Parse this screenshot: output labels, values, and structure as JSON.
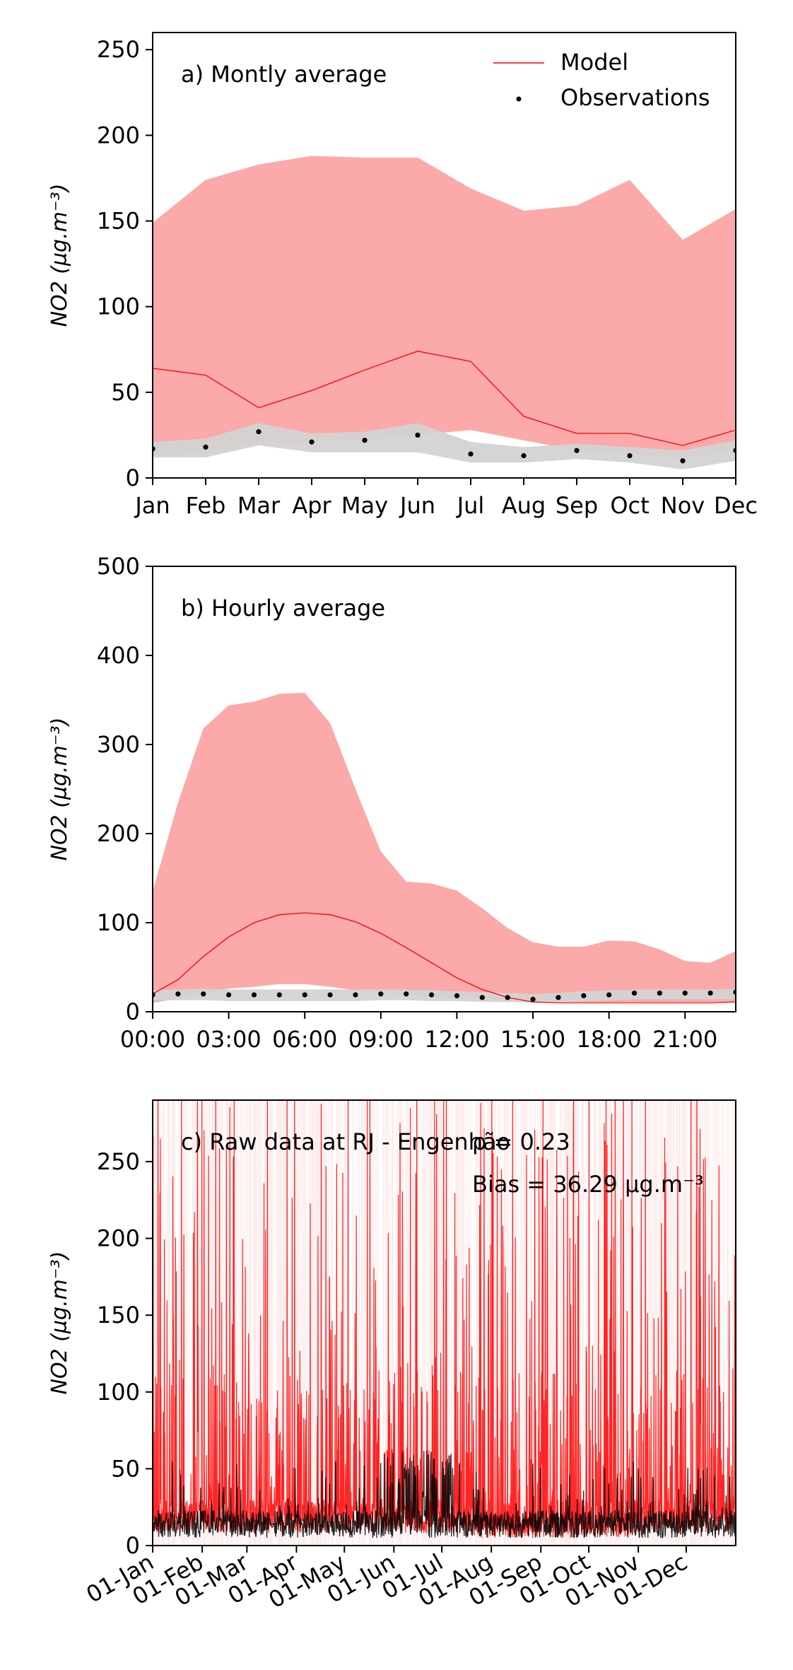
{
  "colors": {
    "model": "#ff0000",
    "model_band": "#fca9a9",
    "obs": "#000000",
    "obs_band": "#d3d3d3"
  },
  "chart_data": [
    {
      "type": "line",
      "title": "a) Montly average",
      "ylabel": "NO2 (µg.m⁻³)",
      "ylim": [
        0,
        260
      ],
      "yticks": [
        0,
        50,
        100,
        150,
        200,
        250
      ],
      "categories": [
        "Jan",
        "Feb",
        "Mar",
        "Apr",
        "May",
        "Jun",
        "Jul",
        "Aug",
        "Sep",
        "Oct",
        "Nov",
        "Dec"
      ],
      "legend": {
        "position": "top-right",
        "entries": [
          "Model",
          "Observations"
        ]
      },
      "series": [
        {
          "name": "Model",
          "kind": "line",
          "values": [
            64,
            60,
            41,
            51,
            63,
            74,
            68,
            36,
            26,
            26,
            19,
            28
          ]
        },
        {
          "kind": "band",
          "upper": [
            149,
            174,
            183,
            188,
            187,
            187,
            169,
            156,
            159,
            174,
            139,
            157
          ],
          "lower": [
            13,
            14,
            20,
            21,
            22,
            25,
            28,
            22,
            16,
            14,
            11,
            16
          ]
        },
        {
          "name": "Observations",
          "kind": "scatter",
          "values": [
            17,
            18,
            27,
            21,
            22,
            25,
            14,
            13,
            16,
            13,
            10,
            16
          ]
        },
        {
          "kind": "band",
          "upper": [
            21,
            23,
            32,
            26,
            27,
            32,
            21,
            18,
            20,
            18,
            16,
            22
          ],
          "lower": [
            12,
            12,
            19,
            15,
            15,
            15,
            9,
            9,
            11,
            9,
            5,
            10
          ]
        }
      ]
    },
    {
      "type": "line",
      "title": "b) Hourly average",
      "ylabel": "NO2 (µg.m⁻³)",
      "ylim": [
        0,
        500
      ],
      "yticks": [
        0,
        100,
        200,
        300,
        400,
        500
      ],
      "xlim": [
        0,
        23
      ],
      "xticks": [
        0,
        3,
        6,
        9,
        12,
        15,
        18,
        21
      ],
      "xtick_labels": [
        "00:00",
        "03:00",
        "06:00",
        "09:00",
        "12:00",
        "15:00",
        "18:00",
        "21:00"
      ],
      "x": [
        0,
        1,
        2,
        3,
        4,
        5,
        6,
        7,
        8,
        9,
        10,
        11,
        12,
        13,
        14,
        15,
        16,
        17,
        18,
        19,
        20,
        21,
        22,
        23
      ],
      "series": [
        {
          "name": "Model",
          "kind": "line",
          "values": [
            20,
            36,
            62,
            84,
            100,
            109,
            111,
            109,
            101,
            88,
            72,
            55,
            38,
            25,
            16,
            11,
            10,
            10,
            10,
            10,
            10,
            10,
            10,
            11
          ]
        },
        {
          "kind": "band",
          "upper": [
            135,
            235,
            318,
            344,
            348,
            357,
            358,
            324,
            250,
            180,
            146,
            144,
            136,
            116,
            94,
            78,
            73,
            73,
            80,
            79,
            70,
            57,
            55,
            68
          ]
        },
        {
          "kind": "band",
          "lower": [
            10,
            15,
            22,
            26,
            28,
            31,
            31,
            28,
            24,
            21,
            19,
            17,
            16,
            14,
            12,
            11,
            11,
            11,
            11,
            11,
            11,
            11,
            11,
            11
          ]
        },
        {
          "name": "Observations",
          "kind": "scatter",
          "values": [
            19,
            20,
            20,
            19,
            19,
            19,
            19,
            19,
            19,
            20,
            20,
            19,
            18,
            16,
            16,
            14,
            16,
            18,
            19,
            21,
            21,
            21,
            21,
            22
          ]
        },
        {
          "kind": "band",
          "upper": [
            24,
            25,
            26,
            25,
            25,
            25,
            25,
            25,
            25,
            25,
            25,
            24,
            23,
            22,
            21,
            20,
            21,
            23,
            24,
            25,
            25,
            25,
            25,
            26
          ]
        },
        {
          "kind": "band",
          "lower": [
            13,
            13,
            13,
            12,
            12,
            12,
            12,
            12,
            12,
            13,
            13,
            12,
            12,
            11,
            11,
            10,
            11,
            12,
            13,
            14,
            14,
            14,
            14,
            14
          ]
        }
      ]
    },
    {
      "type": "line",
      "title": "c) Raw data at RJ - Engenhão",
      "ylabel": "NO2 (µg.m⁻³)",
      "ylim": [
        0,
        290
      ],
      "yticks": [
        0,
        50,
        100,
        150,
        200,
        250
      ],
      "xlim": [
        0,
        365
      ],
      "xticks": [
        0,
        31,
        59,
        90,
        120,
        151,
        181,
        212,
        243,
        273,
        304,
        334
      ],
      "xtick_labels": [
        "01-Jan",
        "01-Feb",
        "01-Mar",
        "01-Apr",
        "01-May",
        "01-Jun",
        "01-Jul",
        "01-Aug",
        "01-Sep",
        "01-Oct",
        "01-Nov",
        "01-Dec"
      ],
      "stats": {
        "rho": "ρ = 0.23",
        "bias": "Bias = 36.29 µg.m⁻³"
      }
    }
  ]
}
